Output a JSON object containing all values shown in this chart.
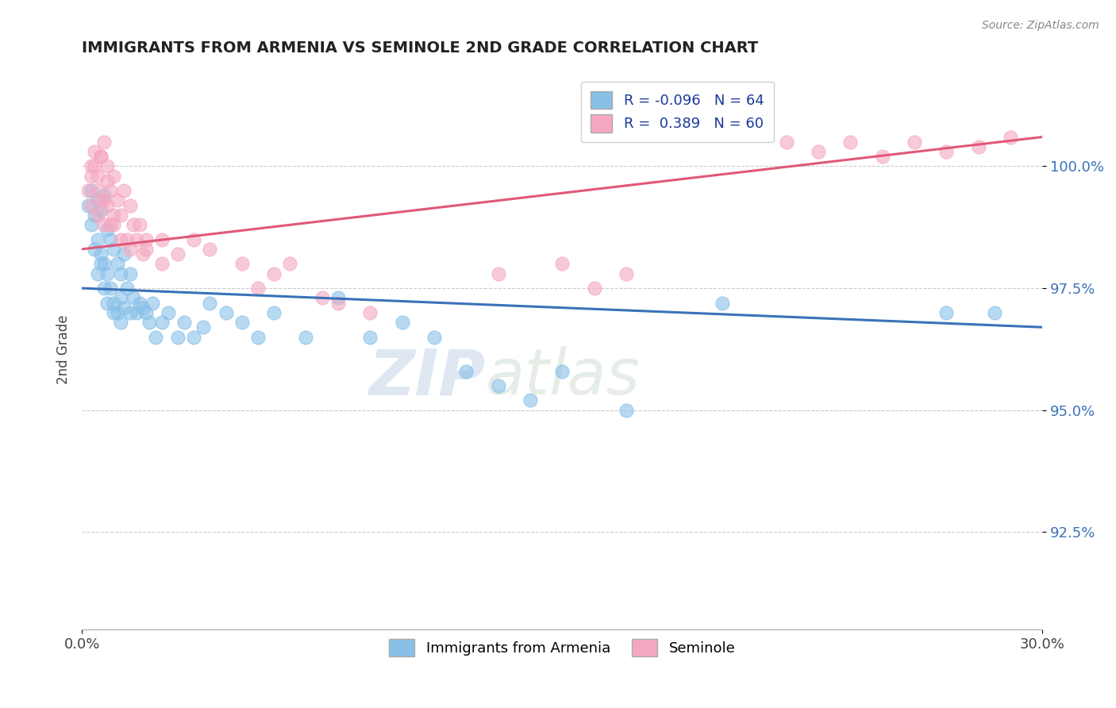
{
  "title": "IMMIGRANTS FROM ARMENIA VS SEMINOLE 2ND GRADE CORRELATION CHART",
  "source_text": "Source: ZipAtlas.com",
  "ylabel": "2nd Grade",
  "xmin": 0.0,
  "xmax": 30.0,
  "ymin": 90.5,
  "ymax": 102.0,
  "yticks": [
    92.5,
    95.0,
    97.5,
    100.0
  ],
  "xticks": [
    0.0,
    30.0
  ],
  "xtick_labels": [
    "0.0%",
    "30.0%"
  ],
  "ytick_labels": [
    "92.5%",
    "95.0%",
    "97.5%",
    "100.0%"
  ],
  "legend_label1": "Immigrants from Armenia",
  "legend_label2": "Seminole",
  "r1": -0.096,
  "n1": 64,
  "r2": 0.389,
  "n2": 60,
  "blue_color": "#88c0e8",
  "pink_color": "#f4a8c0",
  "blue_line_color": "#3a72b8",
  "pink_line_color": "#e05878",
  "blue_line_x0": 0.0,
  "blue_line_y0": 97.5,
  "blue_line_x1": 30.0,
  "blue_line_y1": 96.7,
  "pink_line_x0": 0.0,
  "pink_line_y0": 98.3,
  "pink_line_x1": 30.0,
  "pink_line_y1": 100.6,
  "blue_scatter_x": [
    0.2,
    0.3,
    0.3,
    0.4,
    0.5,
    0.5,
    0.6,
    0.6,
    0.7,
    0.7,
    0.8,
    0.8,
    0.9,
    0.9,
    1.0,
    1.0,
    1.1,
    1.1,
    1.2,
    1.2,
    1.3,
    1.3,
    1.4,
    1.5,
    1.5,
    1.6,
    1.7,
    1.8,
    1.9,
    2.0,
    2.1,
    2.2,
    2.3,
    2.5,
    2.7,
    3.0,
    3.2,
    3.5,
    3.8,
    4.0,
    4.5,
    5.0,
    5.5,
    6.0,
    7.0,
    8.0,
    9.0,
    10.0,
    11.0,
    12.0,
    13.0,
    14.0,
    15.0,
    17.0,
    0.4,
    0.5,
    0.6,
    0.7,
    0.8,
    1.0,
    1.2,
    20.0,
    27.0,
    28.5
  ],
  "blue_scatter_y": [
    99.2,
    99.5,
    98.8,
    99.0,
    99.3,
    98.5,
    99.1,
    98.2,
    99.4,
    98.0,
    98.7,
    97.8,
    98.5,
    97.5,
    98.3,
    97.2,
    98.0,
    97.0,
    97.8,
    97.3,
    98.2,
    97.1,
    97.5,
    97.8,
    97.0,
    97.3,
    97.0,
    97.2,
    97.1,
    97.0,
    96.8,
    97.2,
    96.5,
    96.8,
    97.0,
    96.5,
    96.8,
    96.5,
    96.7,
    97.2,
    97.0,
    96.8,
    96.5,
    97.0,
    96.5,
    97.3,
    96.5,
    96.8,
    96.5,
    95.8,
    95.5,
    95.2,
    95.8,
    95.0,
    98.3,
    97.8,
    98.0,
    97.5,
    97.2,
    97.0,
    96.8,
    97.2,
    97.0,
    97.0
  ],
  "pink_scatter_x": [
    0.2,
    0.3,
    0.3,
    0.4,
    0.5,
    0.5,
    0.6,
    0.6,
    0.7,
    0.7,
    0.8,
    0.8,
    0.9,
    1.0,
    1.0,
    1.1,
    1.2,
    1.3,
    1.4,
    1.5,
    1.5,
    1.6,
    1.7,
    1.8,
    1.9,
    2.0,
    2.5,
    3.0,
    3.5,
    4.0,
    5.0,
    5.5,
    6.5,
    7.5,
    9.0,
    0.3,
    0.4,
    0.5,
    0.6,
    0.7,
    0.8,
    0.9,
    1.0,
    1.2,
    2.0,
    2.5,
    22.0,
    23.0,
    24.0,
    25.0,
    26.0,
    27.0,
    28.0,
    29.0,
    13.0,
    15.0,
    16.0,
    17.0,
    6.0,
    8.0
  ],
  "pink_scatter_y": [
    99.5,
    100.0,
    99.2,
    100.3,
    99.8,
    99.0,
    100.2,
    99.3,
    100.5,
    98.8,
    100.0,
    99.2,
    99.5,
    99.8,
    98.8,
    99.3,
    99.0,
    99.5,
    98.5,
    99.2,
    98.3,
    98.8,
    98.5,
    98.8,
    98.2,
    98.5,
    98.5,
    98.2,
    98.5,
    98.3,
    98.0,
    97.5,
    98.0,
    97.3,
    97.0,
    99.8,
    100.0,
    99.5,
    100.2,
    99.3,
    99.7,
    98.8,
    99.0,
    98.5,
    98.3,
    98.0,
    100.5,
    100.3,
    100.5,
    100.2,
    100.5,
    100.3,
    100.4,
    100.6,
    97.8,
    98.0,
    97.5,
    97.8,
    97.8,
    97.2
  ]
}
